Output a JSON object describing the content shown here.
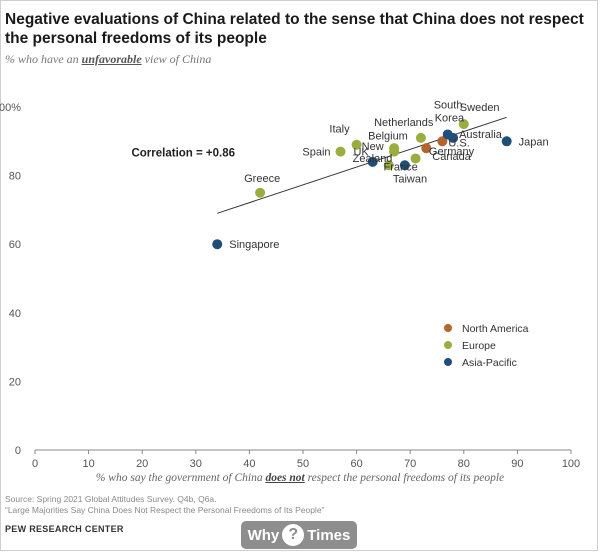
{
  "page": {
    "title": "Negative evaluations of China related to the sense that China does not respect the personal freedoms of its people",
    "subtitle_prefix": "% who have an ",
    "subtitle_emph": "unfavorable",
    "subtitle_suffix": " view of China",
    "xlabel_prefix": "% who say the government of China ",
    "xlabel_emph": "does not",
    "xlabel_suffix": " respect the personal freedoms of its people",
    "source_line1": "Source: Spring 2021 Global Attitudes Survey. Q4b, Q6a.",
    "source_line2": "“Large Majorities Say China Does Not Respect the Personal Freedoms of Its People”",
    "org": "PEW RESEARCH CENTER",
    "watermark_left": "Why",
    "watermark_mark": "?",
    "watermark_right": "Times"
  },
  "chart_data": {
    "type": "scatter",
    "xlim": [
      0,
      100
    ],
    "ylim": [
      0,
      100
    ],
    "x_ticks": [
      "0",
      "10",
      "20",
      "30",
      "40",
      "50",
      "60",
      "70",
      "80",
      "90",
      "100"
    ],
    "y_ticks": [
      "0",
      "20",
      "40",
      "60",
      "80",
      "100%"
    ],
    "grid": false,
    "legend_position": "bottom-right",
    "annotation": "Correlation = +0.86",
    "trendline": {
      "from": [
        34,
        69
      ],
      "to": [
        88,
        97
      ]
    },
    "groups": [
      {
        "name": "North America",
        "color": "#b5652b"
      },
      {
        "name": "Europe",
        "color": "#9aae3f"
      },
      {
        "name": "Asia-Pacific",
        "color": "#1f4e79"
      }
    ],
    "points": [
      {
        "label": "Singapore",
        "x": 34,
        "y": 60,
        "group": "Asia-Pacific"
      },
      {
        "label": "Greece",
        "x": 42,
        "y": 75,
        "group": "Europe"
      },
      {
        "label": "Spain",
        "x": 57,
        "y": 87,
        "group": "Europe"
      },
      {
        "label": "Italy",
        "x": 60,
        "y": 89,
        "group": "Europe"
      },
      {
        "label": "New Zealand",
        "x": 63,
        "y": 84,
        "group": "Asia-Pacific"
      },
      {
        "label": "UK",
        "x": 66,
        "y": 83,
        "group": "Europe"
      },
      {
        "label": "Belgium",
        "x": 67,
        "y": 87,
        "group": "Europe"
      },
      {
        "label": "Netherlands",
        "x": 67,
        "y": 88,
        "group": "Europe"
      },
      {
        "label": "France",
        "x": 71,
        "y": 85,
        "group": "Europe"
      },
      {
        "label": "Taiwan",
        "x": 69,
        "y": 83,
        "group": "Asia-Pacific"
      },
      {
        "label": "Germany",
        "x": 72,
        "y": 91,
        "group": "Europe"
      },
      {
        "label": "Canada",
        "x": 73,
        "y": 88,
        "group": "North America"
      },
      {
        "label": "U.S.",
        "x": 76,
        "y": 90,
        "group": "North America"
      },
      {
        "label": "South Korea",
        "x": 77,
        "y": 92,
        "group": "Asia-Pacific"
      },
      {
        "label": "Australia",
        "x": 78,
        "y": 91,
        "group": "Asia-Pacific"
      },
      {
        "label": "Sweden",
        "x": 80,
        "y": 95,
        "group": "Europe"
      },
      {
        "label": "Japan",
        "x": 88,
        "y": 90,
        "group": "Asia-Pacific"
      }
    ]
  }
}
